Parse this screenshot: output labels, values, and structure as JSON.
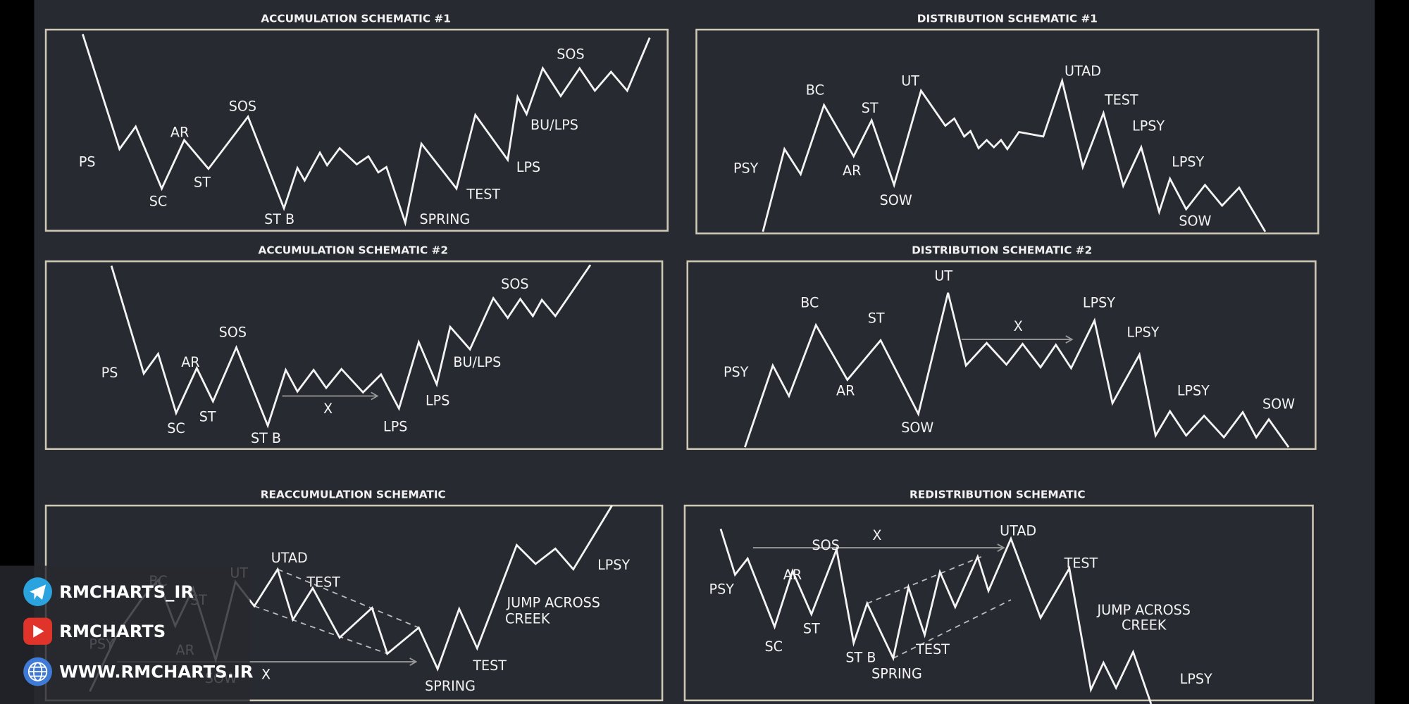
{
  "panels": [
    {
      "title": "ACCUMULATION SCHEMATIC #1",
      "labels": [
        "PS",
        "SC",
        "AR",
        "ST",
        "SOS",
        "ST B",
        "SPRING",
        "TEST",
        "LPS",
        "BU/LPS",
        "SOS"
      ]
    },
    {
      "title": "DISTRIBUTION SCHEMATIC #1",
      "labels": [
        "PSY",
        "BC",
        "AR",
        "ST",
        "SOW",
        "UT",
        "UTAD",
        "TEST",
        "LPSY",
        "LPSY",
        "SOW"
      ]
    },
    {
      "title": "ACCUMULATION SCHEMATIC #2",
      "labels": [
        "PS",
        "SC",
        "AR",
        "ST",
        "SOS",
        "ST B",
        "X",
        "LPS",
        "LPS",
        "BU/LPS",
        "SOS"
      ]
    },
    {
      "title": "DISTRIBUTION SCHEMATIC #2",
      "labels": [
        "PSY",
        "BC",
        "AR",
        "ST",
        "SOW",
        "UT",
        "X",
        "LPSY",
        "LPSY",
        "LPSY",
        "SOW"
      ]
    },
    {
      "title": "REACCUMULATION SCHEMATIC",
      "labels": [
        "PSY",
        "BC",
        "ST",
        "AR",
        "SOW",
        "UT",
        "UTAD",
        "TEST",
        "X",
        "SPRING",
        "TEST",
        "JUMP ACROSS",
        "CREEK",
        "LPSY"
      ]
    },
    {
      "title": "REDISTRIBUTION SCHEMATIC",
      "labels": [
        "PSY",
        "SC",
        "AR",
        "SOS",
        "ST",
        "X",
        "ST B",
        "SPRING",
        "TEST",
        "UTAD",
        "TEST",
        "JUMP ACROSS",
        "CREEK",
        "LPSY"
      ]
    }
  ],
  "social": [
    "RMCHARTS_IR",
    "RMCHARTS",
    "WWW.RMCHARTS.IR"
  ]
}
